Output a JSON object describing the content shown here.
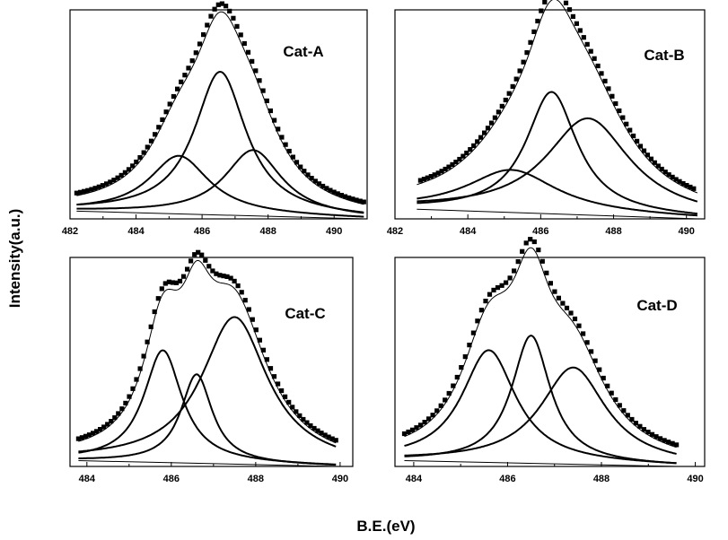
{
  "figure": {
    "ylabel": "Intensity(a.u.)",
    "xlabel": "B.E.(eV)"
  },
  "chart_data": [
    {
      "type": "line",
      "title": "Cat-A",
      "xlim": [
        482,
        491
      ],
      "xticks": [
        482,
        484,
        486,
        488,
        490
      ],
      "ylim": [
        0,
        1.08
      ],
      "baseline": [
        [
          482.2,
          0.04
        ],
        [
          490.9,
          0.0
        ]
      ],
      "peaks": [
        {
          "center": 485.3,
          "height": 0.3,
          "width": 1.1
        },
        {
          "center": 486.55,
          "height": 0.74,
          "width": 0.95
        },
        {
          "center": 487.55,
          "height": 0.34,
          "width": 1.05
        }
      ],
      "data_points": {
        "x_start": 482.2,
        "x_end": 490.9,
        "count": 78,
        "peak_max": 1.0,
        "peak_at": 486.6
      }
    },
    {
      "type": "line",
      "title": "Cat-B",
      "xlim": [
        482,
        490.5
      ],
      "xticks": [
        482,
        484,
        486,
        488,
        490
      ],
      "ylim": [
        0,
        1.08
      ],
      "baseline": [
        [
          482.6,
          0.05
        ],
        [
          490.3,
          0.0
        ]
      ],
      "peaks": [
        {
          "center": 485.2,
          "height": 0.22,
          "width": 1.5
        },
        {
          "center": 486.3,
          "height": 0.63,
          "width": 0.85
        },
        {
          "center": 487.3,
          "height": 0.5,
          "width": 1.4
        }
      ],
      "data_points": {
        "x_start": 482.7,
        "x_end": 490.2,
        "count": 78,
        "peak_max": 1.0,
        "peak_at": 486.5
      }
    },
    {
      "type": "line",
      "title": "Cat-C",
      "xlim": [
        483.6,
        490.3
      ],
      "xticks": [
        484,
        486,
        488,
        490
      ],
      "ylim": [
        0,
        1.08
      ],
      "baseline": [
        [
          483.8,
          0.03
        ],
        [
          489.9,
          0.0
        ]
      ],
      "peaks": [
        {
          "center": 485.8,
          "height": 0.58,
          "width": 0.55
        },
        {
          "center": 486.6,
          "height": 0.46,
          "width": 0.45
        },
        {
          "center": 487.5,
          "height": 0.76,
          "width": 0.95
        }
      ],
      "data_points": {
        "x_start": 483.8,
        "x_end": 489.9,
        "count": 72,
        "peak_max": 1.0,
        "peak_at": 486.8
      }
    },
    {
      "type": "line",
      "title": "Cat-D",
      "xlim": [
        483.6,
        490.2
      ],
      "xticks": [
        484,
        486,
        488,
        490
      ],
      "ylim": [
        0,
        1.08
      ],
      "baseline": [
        [
          483.8,
          0.03
        ],
        [
          489.6,
          0.0
        ]
      ],
      "peaks": [
        {
          "center": 485.6,
          "height": 0.58,
          "width": 0.7
        },
        {
          "center": 486.5,
          "height": 0.66,
          "width": 0.5
        },
        {
          "center": 487.4,
          "height": 0.5,
          "width": 0.85
        }
      ],
      "data_points": {
        "x_start": 483.8,
        "x_end": 489.6,
        "count": 68,
        "peak_max": 1.0,
        "peak_at": 486.45
      }
    }
  ]
}
